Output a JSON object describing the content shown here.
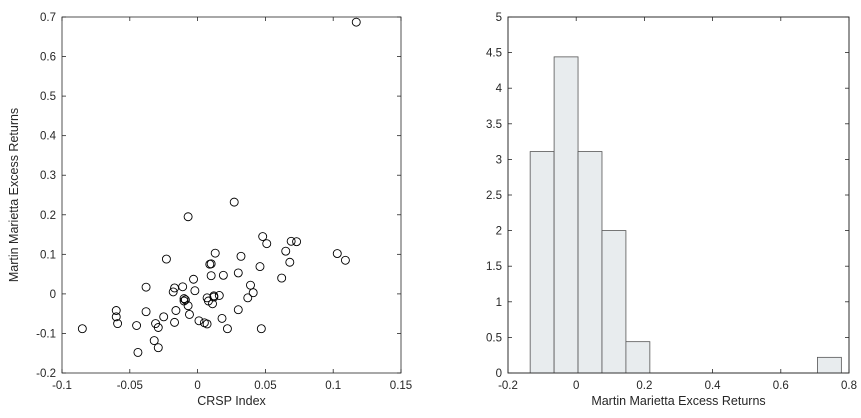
{
  "chart_data": [
    {
      "type": "scatter",
      "xlabel": "CRSP Index",
      "ylabel": "Martin Marietta Excess Returns",
      "xlim": [
        -0.1,
        0.15
      ],
      "ylim": [
        -0.2,
        0.7
      ],
      "xticks": [
        "-0.1",
        "-0.05",
        "0",
        "0.05",
        "0.1",
        "0.15"
      ],
      "yticks": [
        "-0.2",
        "-0.1",
        "0",
        "0.1",
        "0.2",
        "0.3",
        "0.4",
        "0.5",
        "0.6",
        "0.7"
      ],
      "marker": "open-circle",
      "points": [
        [
          -0.085,
          -0.088
        ],
        [
          -0.06,
          -0.042
        ],
        [
          -0.06,
          -0.058
        ],
        [
          -0.059,
          -0.075
        ],
        [
          -0.045,
          -0.08
        ],
        [
          -0.044,
          -0.148
        ],
        [
          -0.038,
          0.017
        ],
        [
          -0.038,
          -0.045
        ],
        [
          -0.032,
          -0.118
        ],
        [
          -0.031,
          -0.075
        ],
        [
          -0.029,
          -0.085
        ],
        [
          -0.029,
          -0.136
        ],
        [
          -0.025,
          -0.058
        ],
        [
          -0.023,
          0.088
        ],
        [
          -0.018,
          0.005
        ],
        [
          -0.017,
          0.015
        ],
        [
          -0.017,
          -0.072
        ],
        [
          -0.016,
          -0.042
        ],
        [
          -0.011,
          0.018
        ],
        [
          -0.01,
          -0.012
        ],
        [
          -0.01,
          -0.018
        ],
        [
          -0.009,
          -0.015
        ],
        [
          -0.007,
          0.195
        ],
        [
          -0.007,
          -0.03
        ],
        [
          -0.006,
          -0.052
        ],
        [
          -0.003,
          0.037
        ],
        [
          -0.002,
          0.008
        ],
        [
          0.001,
          -0.068
        ],
        [
          0.005,
          -0.073
        ],
        [
          0.007,
          -0.076
        ],
        [
          0.007,
          -0.01
        ],
        [
          0.008,
          -0.018
        ],
        [
          0.009,
          0.075
        ],
        [
          0.01,
          0.076
        ],
        [
          0.01,
          0.046
        ],
        [
          0.011,
          -0.025
        ],
        [
          0.012,
          -0.005
        ],
        [
          0.012,
          -0.008
        ],
        [
          0.013,
          0.103
        ],
        [
          0.016,
          -0.004
        ],
        [
          0.018,
          -0.062
        ],
        [
          0.019,
          0.047
        ],
        [
          0.022,
          -0.088
        ],
        [
          0.027,
          0.232
        ],
        [
          0.03,
          0.053
        ],
        [
          0.03,
          -0.04
        ],
        [
          0.032,
          0.095
        ],
        [
          0.037,
          -0.01
        ],
        [
          0.039,
          0.022
        ],
        [
          0.041,
          0.003
        ],
        [
          0.046,
          0.069
        ],
        [
          0.047,
          -0.088
        ],
        [
          0.048,
          0.145
        ],
        [
          0.051,
          0.127
        ],
        [
          0.062,
          0.04
        ],
        [
          0.065,
          0.108
        ],
        [
          0.068,
          0.08
        ],
        [
          0.069,
          0.133
        ],
        [
          0.073,
          0.132
        ],
        [
          0.103,
          0.102
        ],
        [
          0.109,
          0.085
        ],
        [
          0.117,
          0.687
        ]
      ]
    },
    {
      "type": "bar",
      "subtype": "histogram",
      "xlabel": "Martin Marietta Excess Returns",
      "ylabel": "",
      "xlim": [
        -0.2,
        0.8
      ],
      "ylim": [
        0,
        5
      ],
      "xticks": [
        "-0.2",
        "0",
        "0.2",
        "0.4",
        "0.6",
        "0.8"
      ],
      "yticks": [
        "0",
        "0.5",
        "1",
        "1.5",
        "2",
        "2.5",
        "3",
        "3.5",
        "4",
        "4.5",
        "5"
      ],
      "bin_edges": [
        -0.135,
        -0.0648,
        0.0054,
        0.0756,
        0.1458,
        0.216,
        0.2862,
        0.3564,
        0.4266,
        0.4968,
        0.567,
        0.6372,
        0.7074,
        0.7776
      ],
      "values": [
        3.11,
        4.44,
        3.11,
        2.0,
        0.44,
        0,
        0,
        0,
        0,
        0,
        0,
        0,
        0.22
      ],
      "bar_fill": "#e8ecee",
      "bar_edge": "#555555"
    }
  ]
}
